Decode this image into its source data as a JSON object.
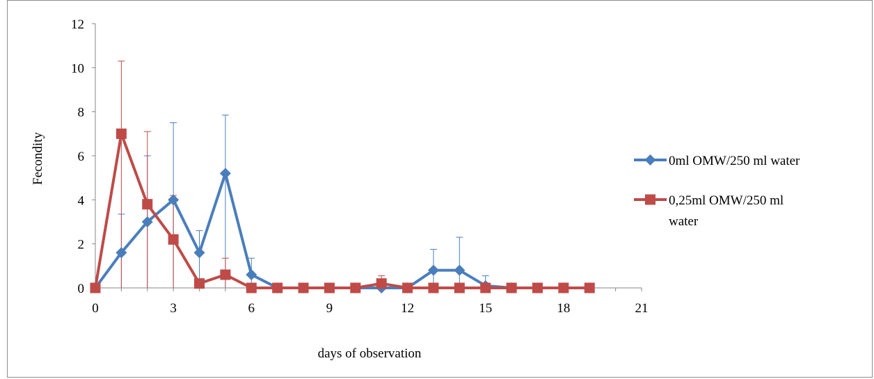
{
  "chart_data": {
    "type": "line",
    "title": "",
    "xlabel": "days of observation",
    "ylabel": "Fecondity",
    "xlim": [
      0,
      21
    ],
    "ylim": [
      0,
      12
    ],
    "xticks": [
      0,
      3,
      6,
      9,
      12,
      15,
      18,
      21
    ],
    "yticks": [
      0,
      2,
      4,
      6,
      8,
      10,
      12
    ],
    "grid": false,
    "legend_position": "right",
    "series": [
      {
        "name": "0ml OMW/250 ml water",
        "color": "#4a7ebb",
        "marker": "diamond",
        "x": [
          0,
          1,
          2,
          3,
          4,
          5,
          6,
          7,
          8,
          9,
          10,
          11,
          12,
          13,
          14,
          15,
          16,
          17,
          18,
          19
        ],
        "y": [
          0,
          1.6,
          3.0,
          4.0,
          1.6,
          5.2,
          0.6,
          0,
          0,
          0,
          0,
          0,
          0,
          0.8,
          0.8,
          0.1,
          0,
          0,
          0,
          0
        ],
        "error": [
          0,
          1.75,
          3.0,
          3.5,
          1.0,
          2.65,
          0.75,
          0,
          0,
          0,
          0,
          0,
          0,
          0.95,
          1.5,
          0.45,
          0,
          0,
          0,
          0
        ]
      },
      {
        "name": "0,25ml OMW/250 ml water",
        "color": "#be4b48",
        "marker": "square",
        "x": [
          0,
          1,
          2,
          3,
          4,
          5,
          6,
          7,
          8,
          9,
          10,
          11,
          12,
          13,
          14,
          15,
          16,
          17,
          18,
          19
        ],
        "y": [
          0,
          7.0,
          3.8,
          2.2,
          0.2,
          0.6,
          0,
          0,
          0,
          0,
          0,
          0.2,
          0,
          0,
          0,
          0,
          0,
          0,
          0,
          0
        ],
        "error": [
          0,
          3.3,
          3.3,
          2.0,
          0,
          0.75,
          0,
          0,
          0,
          0,
          0,
          0.35,
          0,
          0,
          0,
          0,
          0,
          0,
          0,
          0
        ]
      }
    ]
  }
}
